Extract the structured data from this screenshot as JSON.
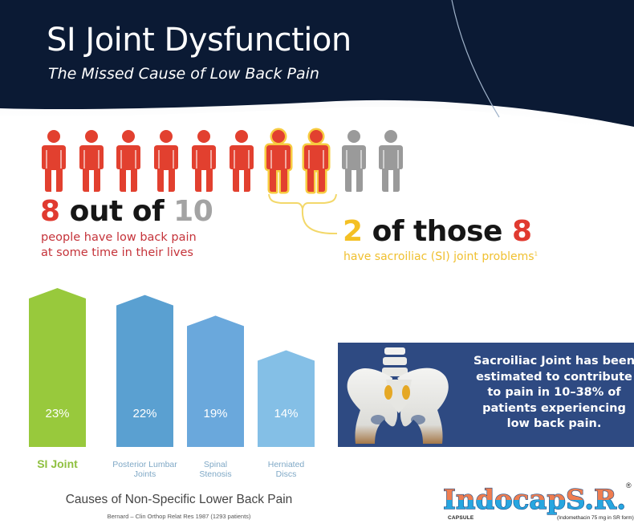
{
  "header": {
    "title": "SI Joint Dysfunction",
    "subtitle": "The Missed Cause of Low Back Pain",
    "background_color": "#0a1a33"
  },
  "people_graphic": {
    "total": 10,
    "people": [
      {
        "state": "red"
      },
      {
        "state": "red"
      },
      {
        "state": "red"
      },
      {
        "state": "red"
      },
      {
        "state": "red"
      },
      {
        "state": "red"
      },
      {
        "state": "highlighted"
      },
      {
        "state": "highlighted"
      },
      {
        "state": "grey"
      },
      {
        "state": "grey"
      }
    ],
    "colors": {
      "red": "#e2402f",
      "grey": "#9a9a9a",
      "glow": "#f6c21f"
    }
  },
  "stat_primary": {
    "number": "8",
    "middle": "out of",
    "total": "10",
    "line1": "people have low back pain",
    "line2": "at some time in their lives"
  },
  "stat_secondary": {
    "number": "2",
    "middle": "of those",
    "total": "8",
    "caption": "have sacroiliac (SI) joint problems",
    "footnote": "1"
  },
  "chart_data": {
    "type": "bar",
    "title": "Causes of Non-Specific Lower Back Pain",
    "source": "Bernard – Clin Orthop Relat Res 1987 (1293 patients)",
    "categories": [
      "SI Joint",
      "Posterior Lumbar Joints",
      "Spinal Stenosis",
      "Herniated Discs"
    ],
    "label_lines": [
      [
        "SI Joint"
      ],
      [
        "Posterior Lumbar",
        "Joints"
      ],
      [
        "Spinal",
        "Stenosis"
      ],
      [
        "Herniated",
        "Discs"
      ]
    ],
    "values": [
      23,
      22,
      19,
      14
    ],
    "value_labels": [
      "23%",
      "22%",
      "19%",
      "14%"
    ],
    "colors": [
      "#98c93c",
      "#5aa0d1",
      "#6aa8dc",
      "#84bfe6"
    ],
    "xlabel": "",
    "ylabel": "",
    "ylim": [
      0,
      25
    ],
    "grid": false,
    "legend": "none"
  },
  "info_box": {
    "text_lines": [
      "Sacroiliac Joint has been",
      "estimated to contribute",
      "to pain in 10–38% of",
      "patients experiencing",
      "low back pain."
    ],
    "background_color": "#2e4a82"
  },
  "brand": {
    "name": "Indocap",
    "suffix": "S.R.",
    "registered": "®",
    "form": "CAPSULE",
    "note": "(Indomethacin 75 mg in SR form)"
  }
}
